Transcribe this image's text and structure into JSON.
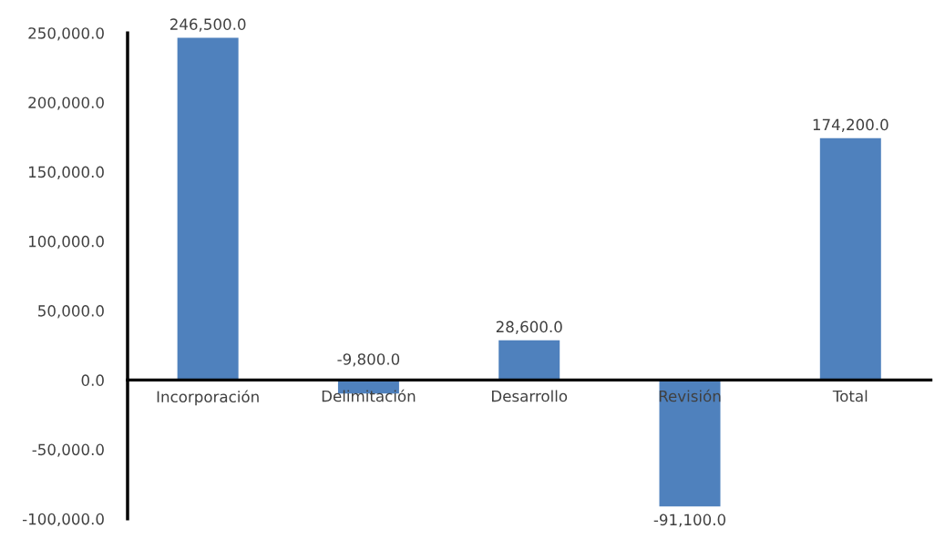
{
  "chart_data": {
    "type": "bar",
    "categories": [
      "Incorporación",
      "Delimitación",
      "Desarrollo",
      "Revisión",
      "Total"
    ],
    "values": [
      246500,
      -9800,
      28600,
      -91100,
      174200
    ],
    "value_labels": [
      "246,500.0",
      "-9,800.0",
      "28,600.0",
      "-91,100.0",
      "174,200.0"
    ],
    "color": "#4f81bd",
    "ylim": [
      -100000,
      250000
    ],
    "yticks": [
      {
        "value": -100000,
        "label": "-100,000.0"
      },
      {
        "value": -50000,
        "label": "-50,000.0"
      },
      {
        "value": 0,
        "label": "0.0"
      },
      {
        "value": 50000,
        "label": "50,000.0"
      },
      {
        "value": 100000,
        "label": "100,000.0"
      },
      {
        "value": 150000,
        "label": "150,000.0"
      },
      {
        "value": 200000,
        "label": "200,000.0"
      },
      {
        "value": 250000,
        "label": "250,000.0"
      }
    ],
    "grid": false,
    "legend": false
  }
}
